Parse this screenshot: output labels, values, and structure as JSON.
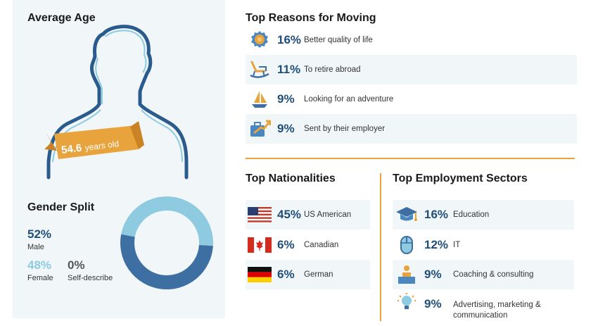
{
  "average_age": {
    "title": "Average Age",
    "value_number": "54.6",
    "value_unit": "years old"
  },
  "gender": {
    "title": "Gender Split",
    "male_pct": "52%",
    "male_label": "Male",
    "female_pct": "48%",
    "female_label": "Female",
    "other_pct": "0%",
    "other_label": "Self-describe"
  },
  "reasons": {
    "title": "Top Reasons for Moving",
    "items": [
      {
        "pct": "16%",
        "label": "Better quality of life",
        "icon": "rosette-icon"
      },
      {
        "pct": "11%",
        "label": "To retire abroad",
        "icon": "rocking-chair-icon"
      },
      {
        "pct": "9%",
        "label": "Looking for an adventure",
        "icon": "sailboat-icon"
      },
      {
        "pct": "9%",
        "label": "Sent by their employer",
        "icon": "briefcase-arrow-icon"
      }
    ]
  },
  "nationalities": {
    "title": "Top Nationalities",
    "items": [
      {
        "pct": "45%",
        "label": "US American",
        "icon": "us-flag-icon"
      },
      {
        "pct": "6%",
        "label": "Canadian",
        "icon": "canada-flag-icon"
      },
      {
        "pct": "6%",
        "label": "German",
        "icon": "germany-flag-icon"
      }
    ]
  },
  "sectors": {
    "title": "Top Employment Sectors",
    "items": [
      {
        "pct": "16%",
        "label": "Education",
        "icon": "graduation-cap-icon"
      },
      {
        "pct": "12%",
        "label": "IT",
        "icon": "mouse-icon"
      },
      {
        "pct": "9%",
        "label": "Coaching & consulting",
        "icon": "presenter-icon"
      },
      {
        "pct": "9%",
        "label1": "Advertising, marketing &",
        "label2": "communication",
        "icon": "lightbulb-icon"
      }
    ]
  },
  "colors": {
    "dark_blue": "#3d6fa3",
    "light_blue": "#8ecae0",
    "orange": "#e8a33d",
    "navy": "#1f4e79"
  },
  "chart_data": {
    "type": "pie",
    "categories": [
      "Male",
      "Female",
      "Self-describe"
    ],
    "values": [
      52,
      48,
      0
    ],
    "colors": [
      "#3d6fa3",
      "#8ecae0",
      "#cccccc"
    ],
    "donut": true
  }
}
